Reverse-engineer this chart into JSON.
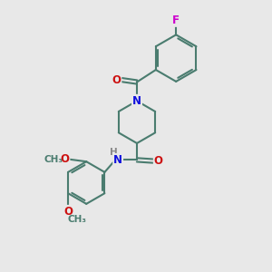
{
  "bg_color": "#e8e8e8",
  "bond_color": "#4a7c6f",
  "bond_width": 1.5,
  "atom_colors": {
    "N": "#1010dd",
    "O": "#cc1111",
    "F": "#cc00cc",
    "H": "#888888",
    "C": "#4a7c6f"
  },
  "font_size": 8.5,
  "fig_width": 3.0,
  "fig_height": 3.0,
  "dpi": 100,
  "xlim": [
    0,
    10
  ],
  "ylim": [
    0,
    12
  ]
}
